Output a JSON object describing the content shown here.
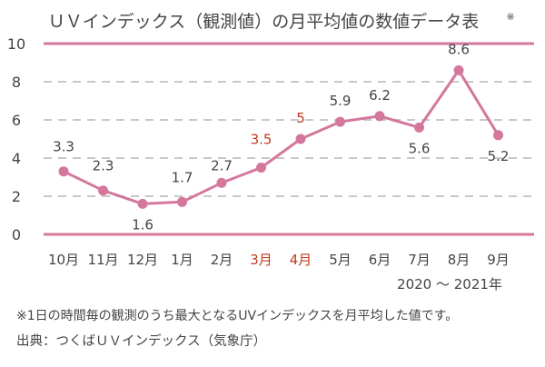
{
  "chart_data": {
    "type": "line",
    "title": "ＵＶインデックス（観測値）の月平均値の数値データ表",
    "title_mark": "※",
    "categories": [
      "10月",
      "11月",
      "12月",
      "1月",
      "2月",
      "3月",
      "4月",
      "5月",
      "6月",
      "7月",
      "8月",
      "9月"
    ],
    "highlight_categories": [
      "3月",
      "4月"
    ],
    "series": [
      {
        "values": [
          3.3,
          2.3,
          1.6,
          1.7,
          2.7,
          3.5,
          5,
          5.9,
          6.2,
          5.6,
          8.6,
          5.2
        ]
      }
    ],
    "value_labels": [
      "3.3",
      "2.3",
      "1.6",
      "1.7",
      "2.7",
      "3.5",
      "5",
      "5.9",
      "6.2",
      "5.6",
      "8.6",
      "5.2"
    ],
    "highlight_value_labels": [
      "3.5",
      "5"
    ],
    "ylim": [
      0,
      10
    ],
    "yticks": [
      0,
      2,
      4,
      6,
      8,
      10
    ],
    "ytick_labels": [
      "0",
      "2",
      "4",
      "6",
      "8",
      "10"
    ],
    "grid": true,
    "period_label": "2020 〜 2021年",
    "colors": {
      "line": "#d4779d",
      "axis": "#d4779d",
      "grid": "#c8c8c8",
      "text": "#444444",
      "highlight": "#c0391b"
    }
  },
  "notes": {
    "footnote": "※1日の時間毎の観測のうち最大となるUVインデックスを月平均した値です。",
    "source": "出典：つくばＵＶインデックス（気象庁）"
  }
}
